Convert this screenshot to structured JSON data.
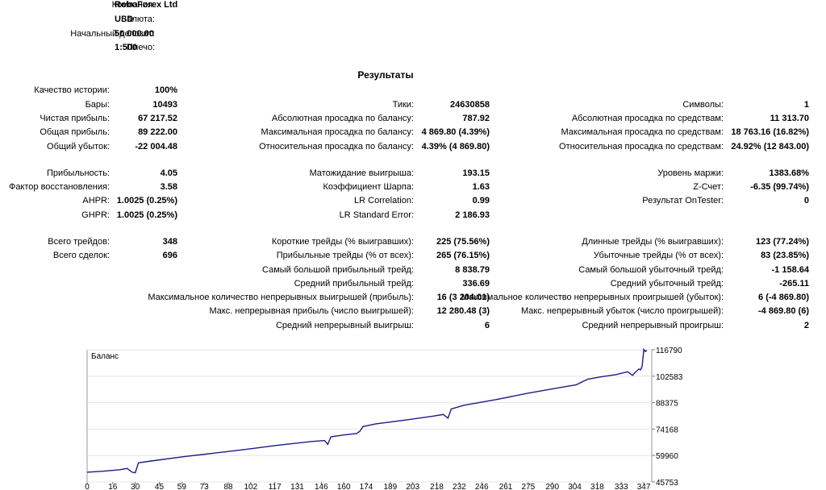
{
  "header": {
    "company_label": "Компания:",
    "company_value": "RoboForex Ltd",
    "currency_label": "Валюта:",
    "currency_value": "USD",
    "deposit_label": "Начальный депозит:",
    "deposit_value": "50 000.00",
    "leverage_label": "Плечо:",
    "leverage_value": "1:500"
  },
  "results_title": "Результаты",
  "col1": [
    {
      "label": "Качество истории:",
      "value": "100%"
    },
    {
      "label": "Бары:",
      "value": "10493"
    },
    {
      "label": "Чистая прибыль:",
      "value": "67 217.52"
    },
    {
      "label": "Общая прибыль:",
      "value": "89 222.00"
    },
    {
      "label": "Общий убыток:",
      "value": "-22 004.48"
    },
    {
      "label": "Прибыльность:",
      "value": "4.05"
    },
    {
      "label": "Фактор восстановления:",
      "value": "3.58"
    },
    {
      "label": "AHPR:",
      "value": "1.0025 (0.25%)"
    },
    {
      "label": "GHPR:",
      "value": "1.0025 (0.25%)"
    },
    {
      "label": "Всего трейдов:",
      "value": "348"
    },
    {
      "label": "Всего сделок:",
      "value": "696"
    }
  ],
  "col2": [
    {
      "label": "Тики:",
      "value": "24630858"
    },
    {
      "label": "Абсолютная просадка по балансу:",
      "value": "787.92"
    },
    {
      "label": "Максимальная просадка по балансу:",
      "value": "4 869.80 (4.39%)"
    },
    {
      "label": "Относительная просадка по балансу:",
      "value": "4.39% (4 869.80)"
    },
    {
      "label": "Матожидание выигрыша:",
      "value": "193.15"
    },
    {
      "label": "Коэффициент Шарпа:",
      "value": "1.63"
    },
    {
      "label": "LR Correlation:",
      "value": "0.99"
    },
    {
      "label": "LR Standard Error:",
      "value": "2 186.93"
    },
    {
      "label": "Короткие трейды (% выигравших):",
      "value": "225 (75.56%)"
    },
    {
      "label": "Прибыльные трейды (% от всех):",
      "value": "265 (76.15%)"
    },
    {
      "label": "Самый большой прибыльный трейд:",
      "value": "8 838.79"
    },
    {
      "label": "Средний прибыльный трейд:",
      "value": "336.69"
    },
    {
      "label": "Максимальное количество непрерывных выигрышей (прибыль):",
      "value": "16 (3 204.01)"
    },
    {
      "label": "Макс. непрерывная прибыль (число выигрышей):",
      "value": "12 280.48 (3)"
    },
    {
      "label": "Средний непрерывный выигрыш:",
      "value": "6"
    }
  ],
  "col3": [
    {
      "label": "Символы:",
      "value": "1"
    },
    {
      "label": "Абсолютная просадка по средствам:",
      "value": "11 313.70"
    },
    {
      "label": "Максимальная просадка по средствам:",
      "value": "18 763.16 (16.82%)"
    },
    {
      "label": "Относительная просадка по средствам:",
      "value": "24.92% (12 843.00)"
    },
    {
      "label": "Уровень маржи:",
      "value": "1383.68%"
    },
    {
      "label": "Z-Счет:",
      "value": "-6.35 (99.74%)"
    },
    {
      "label": "Результат OnTester:",
      "value": "0"
    },
    {
      "label": "Длинные трейды (% выигравших):",
      "value": "123 (77.24%)"
    },
    {
      "label": "Убыточные трейды (% от всех):",
      "value": "83 (23.85%)"
    },
    {
      "label": "Самый большой убыточный трейд:",
      "value": "-1 158.64"
    },
    {
      "label": "Средний убыточный трейд:",
      "value": "-265.11"
    },
    {
      "label": "Максимальное количество непрерывных проигрышей (убыток):",
      "value": "6 (-4 869.80)"
    },
    {
      "label": "Макс. непрерывный убыток (число проигрышей):",
      "value": "-4 869.80 (6)"
    },
    {
      "label": "Средний непрерывный проигрыш:",
      "value": "2"
    }
  ],
  "chart_data": {
    "type": "line",
    "title": "Баланс",
    "line_color": "#1c1c8c",
    "x_ticks": [
      "0",
      "16",
      "30",
      "45",
      "59",
      "73",
      "88",
      "102",
      "117",
      "131",
      "146",
      "160",
      "174",
      "189",
      "203",
      "218",
      "232",
      "246",
      "261",
      "275",
      "290",
      "304",
      "318",
      "333",
      "347"
    ],
    "y_ticks": [
      "116790",
      "102583",
      "88375",
      "74168",
      "59960",
      "45753"
    ],
    "xlim": [
      0,
      352
    ],
    "ylim": [
      45753,
      116790
    ],
    "series": [
      {
        "x": [
          0,
          10,
          20,
          25,
          28,
          30,
          32,
          40,
          60,
          80,
          100,
          120,
          140,
          148,
          150,
          152,
          160,
          168,
          170,
          172,
          180,
          200,
          215,
          222,
          225,
          227,
          235,
          255,
          275,
          285,
          295,
          305,
          312,
          320,
          330,
          337,
          340,
          341,
          344,
          345,
          346,
          347,
          348,
          349
        ],
        "y": [
          51000,
          51500,
          52300,
          53000,
          51000,
          50700,
          56000,
          57000,
          59300,
          61300,
          63400,
          65600,
          67500,
          68000,
          66000,
          70000,
          71000,
          71800,
          73000,
          75500,
          77000,
          79200,
          81000,
          82000,
          80000,
          85000,
          87000,
          90000,
          93500,
          95000,
          96500,
          98000,
          101000,
          102200,
          103500,
          105000,
          103000,
          104000,
          106500,
          106000,
          108000,
          117000,
          115900,
          116500
        ]
      }
    ]
  }
}
